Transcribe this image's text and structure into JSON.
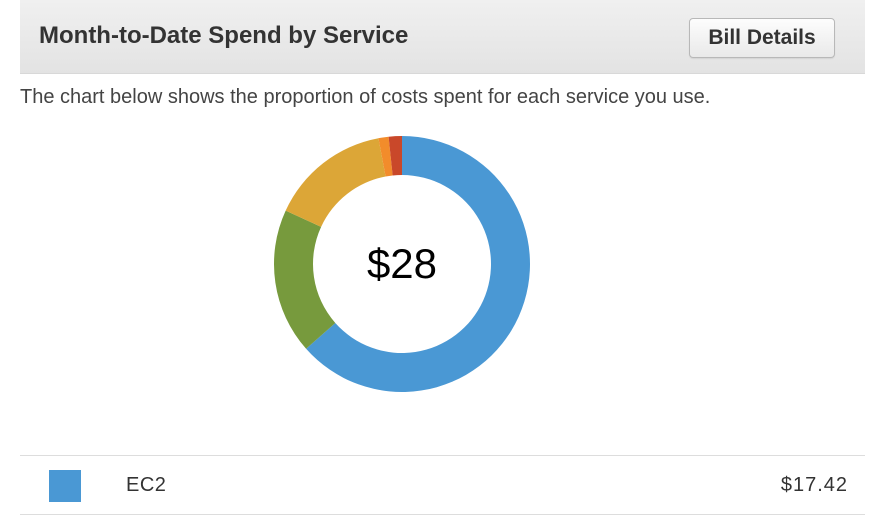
{
  "header": {
    "title": "Month-to-Date Spend by Service",
    "bill_details_label": "Bill Details"
  },
  "description": "The chart below shows the proportion of costs spent for each service you use.",
  "chart_data": {
    "type": "pie",
    "center_label": "$28",
    "slices": [
      {
        "color": "#4a98d4",
        "fraction": 0.6221
      },
      {
        "color": "#779a3d",
        "fraction": 0.18
      },
      {
        "color": "#dca637",
        "fraction": 0.149
      },
      {
        "color": "#f28c2b",
        "fraction": 0.0125
      },
      {
        "color": "#c9482a",
        "fraction": 0.0164
      }
    ]
  },
  "legend": {
    "items": [
      {
        "name": "EC2",
        "value": "$17.42",
        "color": "#4a98d4"
      }
    ]
  }
}
